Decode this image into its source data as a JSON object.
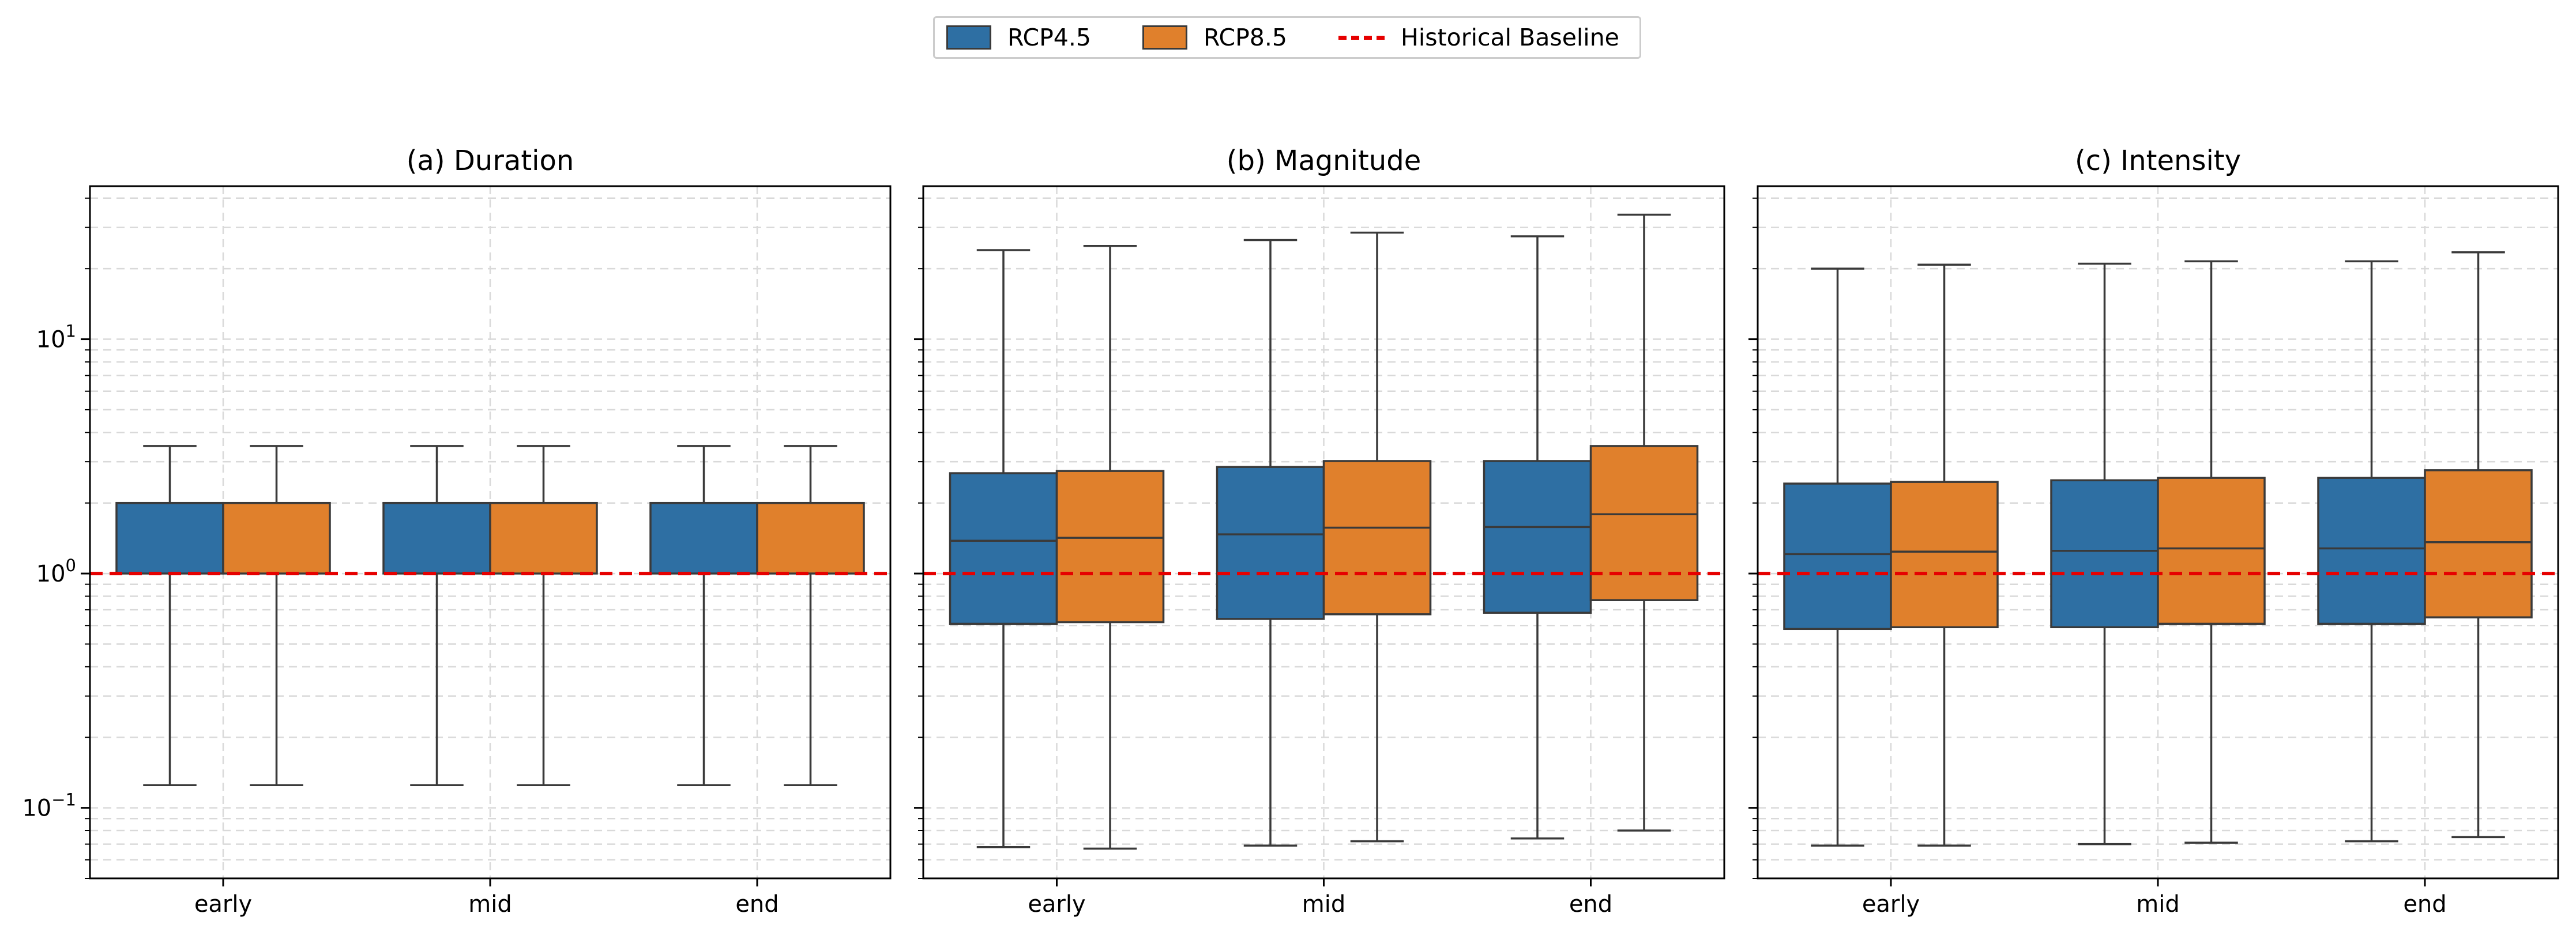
{
  "legend": {
    "rcp45_label": "RCP4.5",
    "rcp85_label": "RCP8.5",
    "baseline_label": "Historical Baseline",
    "rcp45_color": "#2e6fa3",
    "rcp85_color": "#e0802c",
    "baseline_color": "#e60000"
  },
  "chart_data": [
    {
      "type": "box",
      "title": "(a) Duration",
      "y_scale": "log",
      "ylim": [
        0.05,
        45
      ],
      "yticks": [
        "10^-1",
        "10^0",
        "10^1"
      ],
      "grid": true,
      "baseline": 1.0,
      "categories": [
        "early",
        "mid",
        "end"
      ],
      "series": [
        {
          "name": "RCP4.5",
          "boxes": [
            {
              "whislo": 0.125,
              "q1": 1.0,
              "med": 2.0,
              "q3": 2.0,
              "whishi": 3.5
            },
            {
              "whislo": 0.125,
              "q1": 1.0,
              "med": 2.0,
              "q3": 2.0,
              "whishi": 3.5
            },
            {
              "whislo": 0.125,
              "q1": 1.0,
              "med": 2.0,
              "q3": 2.0,
              "whishi": 3.5
            }
          ]
        },
        {
          "name": "RCP8.5",
          "boxes": [
            {
              "whislo": 0.125,
              "q1": 1.0,
              "med": 2.0,
              "q3": 2.0,
              "whishi": 3.5
            },
            {
              "whislo": 0.125,
              "q1": 1.0,
              "med": 2.0,
              "q3": 2.0,
              "whishi": 3.5
            },
            {
              "whislo": 0.125,
              "q1": 1.0,
              "med": 2.0,
              "q3": 2.0,
              "whishi": 3.5
            }
          ]
        }
      ]
    },
    {
      "type": "box",
      "title": "(b) Magnitude",
      "y_scale": "log",
      "ylim": [
        0.05,
        45
      ],
      "grid": true,
      "baseline": 1.0,
      "categories": [
        "early",
        "mid",
        "end"
      ],
      "series": [
        {
          "name": "RCP4.5",
          "boxes": [
            {
              "whislo": 0.068,
              "q1": 0.61,
              "med": 1.38,
              "q3": 2.68,
              "whishi": 24.0
            },
            {
              "whislo": 0.069,
              "q1": 0.64,
              "med": 1.47,
              "q3": 2.85,
              "whishi": 26.5
            },
            {
              "whislo": 0.074,
              "q1": 0.68,
              "med": 1.58,
              "q3": 3.02,
              "whishi": 27.5
            }
          ]
        },
        {
          "name": "RCP8.5",
          "boxes": [
            {
              "whislo": 0.067,
              "q1": 0.62,
              "med": 1.42,
              "q3": 2.74,
              "whishi": 25.0
            },
            {
              "whislo": 0.072,
              "q1": 0.67,
              "med": 1.57,
              "q3": 3.02,
              "whishi": 28.5
            },
            {
              "whislo": 0.08,
              "q1": 0.77,
              "med": 1.79,
              "q3": 3.5,
              "whishi": 34.0
            }
          ]
        }
      ]
    },
    {
      "type": "box",
      "title": "(c) Intensity",
      "y_scale": "log",
      "ylim": [
        0.05,
        45
      ],
      "grid": true,
      "baseline": 1.0,
      "categories": [
        "early",
        "mid",
        "end"
      ],
      "series": [
        {
          "name": "RCP4.5",
          "boxes": [
            {
              "whislo": 0.069,
              "q1": 0.58,
              "med": 1.21,
              "q3": 2.42,
              "whishi": 20.0
            },
            {
              "whislo": 0.07,
              "q1": 0.59,
              "med": 1.25,
              "q3": 2.5,
              "whishi": 21.0
            },
            {
              "whislo": 0.072,
              "q1": 0.61,
              "med": 1.28,
              "q3": 2.56,
              "whishi": 21.5
            }
          ]
        },
        {
          "name": "RCP8.5",
          "boxes": [
            {
              "whislo": 0.069,
              "q1": 0.59,
              "med": 1.24,
              "q3": 2.46,
              "whishi": 20.8
            },
            {
              "whislo": 0.071,
              "q1": 0.61,
              "med": 1.28,
              "q3": 2.56,
              "whishi": 21.5
            },
            {
              "whislo": 0.075,
              "q1": 0.65,
              "med": 1.36,
              "q3": 2.76,
              "whishi": 23.5
            }
          ]
        }
      ]
    }
  ]
}
